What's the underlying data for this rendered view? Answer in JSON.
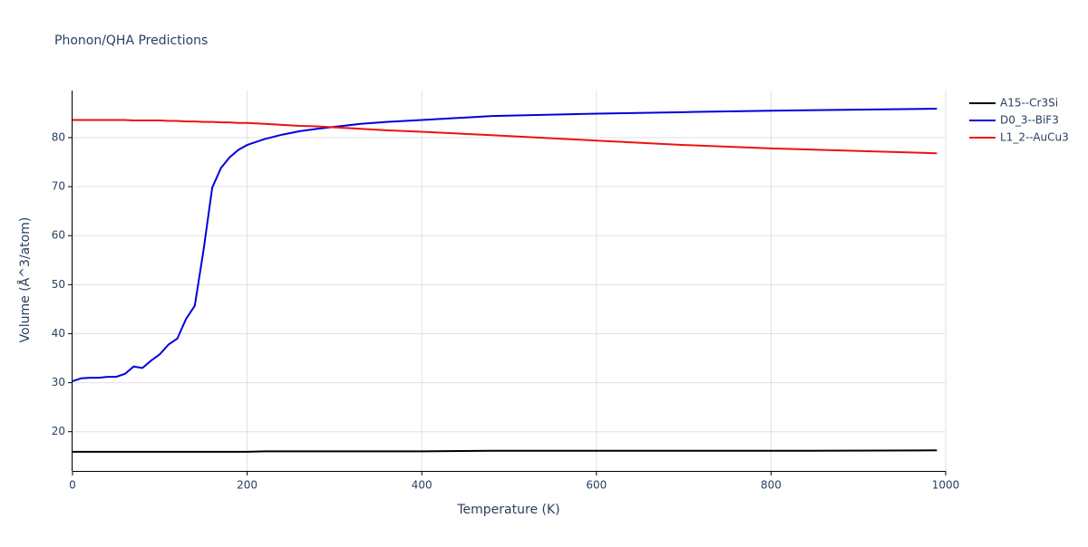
{
  "chart_data": {
    "type": "line",
    "title": "Phonon/QHA Predictions",
    "x_label": "Temperature (K)",
    "y_label": "Volume (Å^3/atom)",
    "x": [
      0,
      10,
      20,
      30,
      40,
      50,
      60,
      70,
      80,
      90,
      100,
      110,
      120,
      130,
      140,
      150,
      160,
      170,
      180,
      190,
      200,
      220,
      240,
      260,
      280,
      300,
      330,
      360,
      400,
      480,
      600,
      700,
      800,
      990
    ],
    "series": [
      {
        "name": "A15--Cr3Si",
        "color": "#000000",
        "values": [
          15.9,
          15.9,
          15.9,
          15.9,
          15.9,
          15.9,
          15.9,
          15.9,
          15.9,
          15.9,
          15.9,
          15.9,
          15.9,
          15.9,
          15.9,
          15.9,
          15.9,
          15.9,
          15.9,
          15.9,
          15.9,
          16.0,
          16.0,
          16.0,
          16.0,
          16.0,
          16.0,
          16.0,
          16.0,
          16.1,
          16.1,
          16.1,
          16.1,
          16.2
        ]
      },
      {
        "name": "D0_3--BiF3",
        "color": "#0000dd",
        "values": [
          30.3,
          30.9,
          31.0,
          31.0,
          31.2,
          31.2,
          31.8,
          33.3,
          33.0,
          34.5,
          35.8,
          37.8,
          39.0,
          43.0,
          45.7,
          57.0,
          69.8,
          73.8,
          76.0,
          77.5,
          78.5,
          79.7,
          80.6,
          81.3,
          81.8,
          82.2,
          82.8,
          83.2,
          83.6,
          84.4,
          84.9,
          85.2,
          85.5,
          85.9
        ]
      },
      {
        "name": "L1_2--AuCu3",
        "color": "#ee1111",
        "values": [
          83.6,
          83.6,
          83.6,
          83.6,
          83.6,
          83.6,
          83.6,
          83.5,
          83.5,
          83.5,
          83.5,
          83.4,
          83.4,
          83.3,
          83.3,
          83.2,
          83.2,
          83.1,
          83.1,
          83.0,
          83.0,
          82.8,
          82.6,
          82.4,
          82.3,
          82.1,
          81.8,
          81.5,
          81.2,
          80.5,
          79.4,
          78.5,
          77.8,
          76.8
        ]
      }
    ],
    "xlim": [
      0,
      1000
    ],
    "xticks": [
      0,
      200,
      400,
      600,
      800,
      1000
    ],
    "ylim": [
      12,
      89.6
    ],
    "yticks": [
      20,
      30,
      40,
      50,
      60,
      70,
      80
    ],
    "grid": true,
    "legend": "right"
  }
}
